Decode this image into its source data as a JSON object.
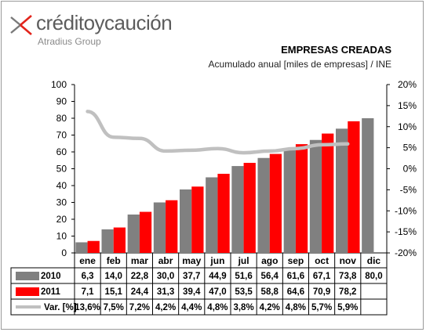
{
  "brand": {
    "name": "créditoycaución",
    "tagline": "Atradius Group"
  },
  "chart_data": {
    "type": "bar",
    "title": "EMPRESAS CREADAS",
    "subtitle": "Acumulado anual [miles de empresas] / INE",
    "categories": [
      "ene",
      "feb",
      "mar",
      "abr",
      "may",
      "jun",
      "jul",
      "ago",
      "sep",
      "oct",
      "nov",
      "dic"
    ],
    "series": [
      {
        "name": "2010",
        "type": "bar",
        "color": "#808080",
        "values": [
          6.3,
          14.0,
          22.8,
          30.0,
          37.7,
          44.9,
          51.6,
          56.4,
          61.6,
          67.1,
          73.8,
          80.0
        ],
        "labels": [
          "6,3",
          "14,0",
          "22,8",
          "30,0",
          "37,7",
          "44,9",
          "51,6",
          "56,4",
          "61,6",
          "67,1",
          "73,8",
          "80,0"
        ]
      },
      {
        "name": "2011",
        "type": "bar",
        "color": "#ff0000",
        "values": [
          7.1,
          15.1,
          24.4,
          31.3,
          39.4,
          47.0,
          53.5,
          58.8,
          64.6,
          70.9,
          78.2,
          null
        ],
        "labels": [
          "7,1",
          "15,1",
          "24,4",
          "31,3",
          "39,4",
          "47,0",
          "53,5",
          "58,8",
          "64,6",
          "70,9",
          "78,2",
          ""
        ]
      },
      {
        "name": "Var. [%]",
        "type": "line",
        "axis": "right",
        "color": "#c0c0c0",
        "values": [
          13.6,
          7.5,
          7.2,
          4.2,
          4.4,
          4.8,
          3.8,
          4.2,
          4.8,
          5.7,
          5.9,
          null
        ],
        "labels": [
          "13,6%",
          "7,5%",
          "7,2%",
          "4,2%",
          "4,4%",
          "4,8%",
          "3,8%",
          "4,2%",
          "4,8%",
          "5,7%",
          "5,9%",
          ""
        ]
      }
    ],
    "ylim": [
      0,
      100
    ],
    "yticks": [
      "0",
      "10",
      "20",
      "30",
      "40",
      "50",
      "60",
      "70",
      "80",
      "90",
      "100"
    ],
    "y2lim": [
      -20,
      20
    ],
    "y2ticks": [
      "-20%",
      "-15%",
      "-10%",
      "-5%",
      "0%",
      "5%",
      "10%",
      "15%",
      "20%"
    ],
    "grid": false,
    "legend": "data-table"
  }
}
